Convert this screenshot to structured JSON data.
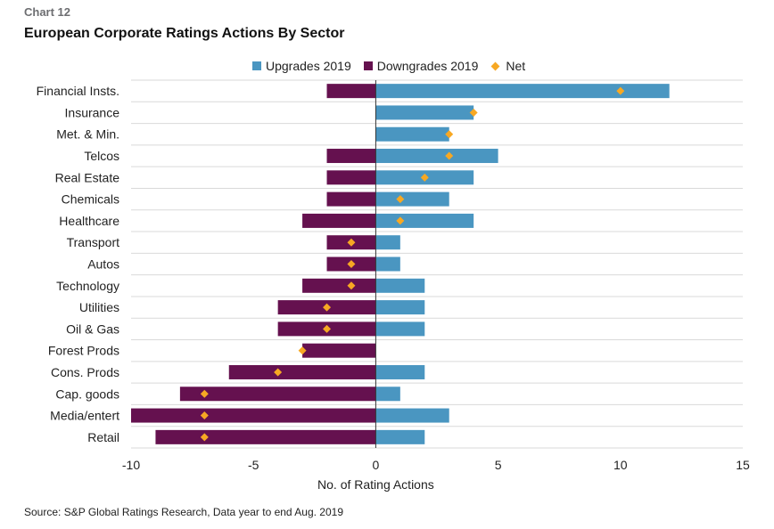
{
  "header": {
    "label": "Chart 12",
    "title": "European Corporate Ratings Actions By Sector"
  },
  "footer": {
    "source": "Source: S&P Global Ratings Research, Data year to end Aug. 2019"
  },
  "colors": {
    "upgrades": "#4a96c1",
    "downgrades": "#65114f",
    "net": "#f7a823",
    "grid": "#d9d9d9",
    "axis": "#333333"
  },
  "chart_data": {
    "type": "bar",
    "orientation": "horizontal",
    "categories": [
      "Financial Insts.",
      "Insurance",
      "Met. & Min.",
      "Telcos",
      "Real Estate",
      "Chemicals",
      "Healthcare",
      "Transport",
      "Autos",
      "Technology",
      "Utilities",
      "Oil & Gas",
      "Forest Prods",
      "Cons. Prods",
      "Cap. goods",
      "Media/entert",
      "Retail"
    ],
    "series": [
      {
        "name": "Upgrades 2019",
        "values": [
          12,
          4,
          3,
          5,
          4,
          3,
          4,
          1,
          1,
          2,
          2,
          2,
          0,
          2,
          1,
          3,
          2
        ]
      },
      {
        "name": "Downgrades 2019",
        "values": [
          -2,
          0,
          0,
          -2,
          -2,
          -2,
          -3,
          -2,
          -2,
          -3,
          -4,
          -4,
          -3,
          -6,
          -8,
          -10,
          -9
        ]
      },
      {
        "name": "Net",
        "values": [
          10,
          4,
          3,
          3,
          2,
          1,
          1,
          -1,
          -1,
          -1,
          -2,
          -2,
          -3,
          -4,
          -7,
          -7,
          -7
        ]
      }
    ],
    "xlabel": "No. of Rating Actions",
    "xlim": [
      -10,
      15
    ],
    "xticks": [
      "-10",
      "-5",
      "0",
      "5",
      "10",
      "15"
    ],
    "grid": "horizontal separators",
    "legend_position": "top"
  }
}
